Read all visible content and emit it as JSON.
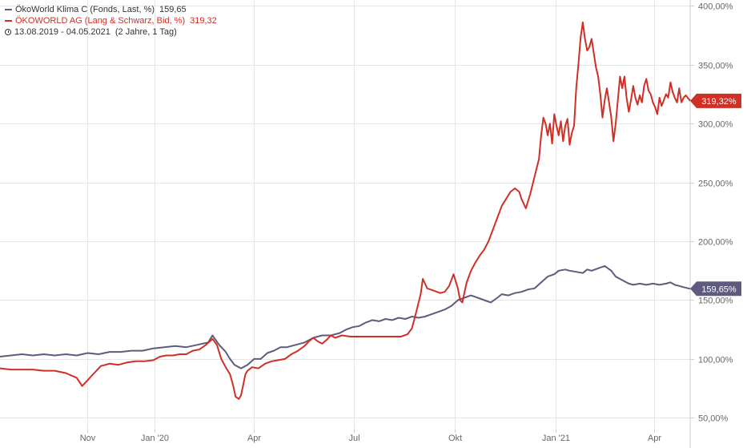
{
  "colors": {
    "fund": "#5e5b7f",
    "stock": "#d02f25",
    "grid": "#e6e6e6",
    "axis_text": "#666666",
    "legend_text": "#333333"
  },
  "legend": {
    "fund_label": "ÖkoWorld Klima C (Fonds, Last, %)",
    "fund_value": "159,65",
    "stock_label": "ÖKOWORLD AG (Lang & Schwarz, Bid, %)",
    "stock_value": "319,32",
    "period": "13.08.2019 - 04.05.2021",
    "period_length": "(2 Jahre, 1 Tag)"
  },
  "chart_data": {
    "type": "line",
    "title": "",
    "xlabel": "",
    "ylabel": "",
    "x_range": [
      "13.08.2019",
      "04.05.2021"
    ],
    "xlim_days": [
      0,
      630
    ],
    "ylim": [
      40,
      405
    ],
    "y_ticks": [
      50,
      100,
      150,
      200,
      250,
      300,
      350,
      400
    ],
    "y_tick_labels": [
      "50,00%",
      "100,00%",
      "150,00%",
      "200,00%",
      "250,00%",
      "300,00%",
      "350,00%",
      "400,00%"
    ],
    "x_ticks": [
      {
        "label": "Nov",
        "day": 80
      },
      {
        "label": "Jan '20",
        "day": 141
      },
      {
        "label": "Apr",
        "day": 232
      },
      {
        "label": "Jul",
        "day": 323
      },
      {
        "label": "Okt",
        "day": 415
      },
      {
        "label": "Jan '21",
        "day": 507
      },
      {
        "label": "Apr",
        "day": 597
      }
    ],
    "grid": true,
    "legend_position": "top-left",
    "series": [
      {
        "name": "ÖkoWorld Klima C (Fonds, Last, %)",
        "last_label": "159,65%",
        "points": [
          [
            0,
            102
          ],
          [
            10,
            103
          ],
          [
            20,
            104
          ],
          [
            30,
            103
          ],
          [
            40,
            104
          ],
          [
            50,
            103
          ],
          [
            60,
            104
          ],
          [
            70,
            103
          ],
          [
            80,
            105
          ],
          [
            90,
            104
          ],
          [
            100,
            106
          ],
          [
            110,
            106
          ],
          [
            120,
            107
          ],
          [
            130,
            107
          ],
          [
            140,
            109
          ],
          [
            150,
            110
          ],
          [
            160,
            111
          ],
          [
            170,
            110
          ],
          [
            180,
            112
          ],
          [
            190,
            114
          ],
          [
            194,
            120
          ],
          [
            200,
            112
          ],
          [
            206,
            106
          ],
          [
            210,
            100
          ],
          [
            214,
            95
          ],
          [
            220,
            92
          ],
          [
            226,
            95
          ],
          [
            232,
            100
          ],
          [
            238,
            100
          ],
          [
            244,
            105
          ],
          [
            250,
            107
          ],
          [
            256,
            110
          ],
          [
            262,
            110
          ],
          [
            270,
            112
          ],
          [
            278,
            114
          ],
          [
            286,
            118
          ],
          [
            294,
            120
          ],
          [
            302,
            120
          ],
          [
            310,
            122
          ],
          [
            316,
            125
          ],
          [
            322,
            127
          ],
          [
            328,
            128
          ],
          [
            334,
            131
          ],
          [
            340,
            133
          ],
          [
            346,
            132
          ],
          [
            352,
            134
          ],
          [
            358,
            133
          ],
          [
            364,
            135
          ],
          [
            370,
            134
          ],
          [
            376,
            136
          ],
          [
            382,
            135
          ],
          [
            388,
            136
          ],
          [
            394,
            138
          ],
          [
            400,
            140
          ],
          [
            406,
            142
          ],
          [
            412,
            145
          ],
          [
            418,
            150
          ],
          [
            424,
            152
          ],
          [
            430,
            154
          ],
          [
            436,
            152
          ],
          [
            442,
            150
          ],
          [
            448,
            148
          ],
          [
            454,
            152
          ],
          [
            458,
            155
          ],
          [
            464,
            154
          ],
          [
            470,
            156
          ],
          [
            476,
            157
          ],
          [
            482,
            159
          ],
          [
            488,
            160
          ],
          [
            494,
            165
          ],
          [
            500,
            170
          ],
          [
            506,
            172
          ],
          [
            510,
            175
          ],
          [
            516,
            176
          ],
          [
            520,
            175
          ],
          [
            526,
            174
          ],
          [
            532,
            173
          ],
          [
            536,
            176
          ],
          [
            540,
            175
          ],
          [
            546,
            177
          ],
          [
            552,
            179
          ],
          [
            558,
            175
          ],
          [
            562,
            170
          ],
          [
            566,
            168
          ],
          [
            570,
            166
          ],
          [
            574,
            164
          ],
          [
            578,
            163
          ],
          [
            584,
            164
          ],
          [
            590,
            163
          ],
          [
            596,
            164
          ],
          [
            602,
            163
          ],
          [
            608,
            164
          ],
          [
            612,
            165
          ],
          [
            616,
            163
          ],
          [
            620,
            162
          ],
          [
            624,
            161
          ],
          [
            630,
            159.65
          ]
        ]
      },
      {
        "name": "ÖKOWORLD AG (Lang & Schwarz, Bid, %)",
        "last_label": "319,32%",
        "points": [
          [
            0,
            92
          ],
          [
            10,
            91
          ],
          [
            20,
            91
          ],
          [
            30,
            91
          ],
          [
            40,
            90
          ],
          [
            50,
            90
          ],
          [
            60,
            88
          ],
          [
            70,
            84
          ],
          [
            75,
            77
          ],
          [
            80,
            82
          ],
          [
            86,
            88
          ],
          [
            92,
            94
          ],
          [
            100,
            96
          ],
          [
            108,
            95
          ],
          [
            116,
            97
          ],
          [
            124,
            98
          ],
          [
            132,
            98
          ],
          [
            140,
            99
          ],
          [
            146,
            102
          ],
          [
            152,
            103
          ],
          [
            158,
            103
          ],
          [
            164,
            104
          ],
          [
            170,
            104
          ],
          [
            176,
            107
          ],
          [
            182,
            108
          ],
          [
            188,
            112
          ],
          [
            194,
            117
          ],
          [
            198,
            112
          ],
          [
            202,
            100
          ],
          [
            206,
            93
          ],
          [
            210,
            87
          ],
          [
            213,
            77
          ],
          [
            215,
            68
          ],
          [
            218,
            66
          ],
          [
            220,
            69
          ],
          [
            222,
            78
          ],
          [
            224,
            87
          ],
          [
            226,
            90
          ],
          [
            230,
            93
          ],
          [
            236,
            92
          ],
          [
            242,
            96
          ],
          [
            248,
            98
          ],
          [
            254,
            99
          ],
          [
            260,
            100
          ],
          [
            266,
            104
          ],
          [
            272,
            107
          ],
          [
            278,
            111
          ],
          [
            282,
            115
          ],
          [
            286,
            118
          ],
          [
            290,
            115
          ],
          [
            294,
            113
          ],
          [
            298,
            116
          ],
          [
            302,
            120
          ],
          [
            306,
            118
          ],
          [
            312,
            120
          ],
          [
            320,
            119
          ],
          [
            330,
            119
          ],
          [
            340,
            119
          ],
          [
            350,
            119
          ],
          [
            360,
            119
          ],
          [
            366,
            119
          ],
          [
            372,
            121
          ],
          [
            376,
            126
          ],
          [
            380,
            140
          ],
          [
            384,
            155
          ],
          [
            386,
            168
          ],
          [
            390,
            160
          ],
          [
            396,
            158
          ],
          [
            402,
            156
          ],
          [
            406,
            157
          ],
          [
            410,
            162
          ],
          [
            414,
            172
          ],
          [
            418,
            160
          ],
          [
            420,
            150
          ],
          [
            422,
            148
          ],
          [
            426,
            165
          ],
          [
            430,
            175
          ],
          [
            434,
            182
          ],
          [
            438,
            188
          ],
          [
            442,
            193
          ],
          [
            446,
            200
          ],
          [
            450,
            210
          ],
          [
            454,
            220
          ],
          [
            458,
            230
          ],
          [
            462,
            236
          ],
          [
            466,
            242
          ],
          [
            470,
            245
          ],
          [
            474,
            242
          ],
          [
            476,
            236
          ],
          [
            478,
            232
          ],
          [
            480,
            228
          ],
          [
            484,
            240
          ],
          [
            488,
            255
          ],
          [
            492,
            270
          ],
          [
            494,
            290
          ],
          [
            496,
            305
          ],
          [
            498,
            300
          ],
          [
            500,
            290
          ],
          [
            502,
            300
          ],
          [
            504,
            283
          ],
          [
            506,
            308
          ],
          [
            508,
            298
          ],
          [
            510,
            290
          ],
          [
            512,
            302
          ],
          [
            514,
            285
          ],
          [
            516,
            298
          ],
          [
            518,
            304
          ],
          [
            520,
            282
          ],
          [
            522,
            292
          ],
          [
            524,
            298
          ],
          [
            526,
            330
          ],
          [
            528,
            350
          ],
          [
            530,
            373
          ],
          [
            532,
            386
          ],
          [
            534,
            372
          ],
          [
            536,
            362
          ],
          [
            538,
            365
          ],
          [
            540,
            372
          ],
          [
            542,
            360
          ],
          [
            544,
            348
          ],
          [
            546,
            340
          ],
          [
            548,
            325
          ],
          [
            550,
            305
          ],
          [
            552,
            320
          ],
          [
            554,
            330
          ],
          [
            556,
            318
          ],
          [
            558,
            305
          ],
          [
            560,
            285
          ],
          [
            562,
            300
          ],
          [
            564,
            320
          ],
          [
            566,
            340
          ],
          [
            568,
            330
          ],
          [
            570,
            340
          ],
          [
            572,
            322
          ],
          [
            574,
            310
          ],
          [
            576,
            320
          ],
          [
            578,
            332
          ],
          [
            580,
            322
          ],
          [
            582,
            316
          ],
          [
            584,
            324
          ],
          [
            586,
            318
          ],
          [
            588,
            332
          ],
          [
            590,
            338
          ],
          [
            592,
            328
          ],
          [
            594,
            325
          ],
          [
            596,
            318
          ],
          [
            598,
            314
          ],
          [
            600,
            308
          ],
          [
            602,
            322
          ],
          [
            604,
            315
          ],
          [
            606,
            320
          ],
          [
            608,
            325
          ],
          [
            610,
            322
          ],
          [
            612,
            335
          ],
          [
            614,
            327
          ],
          [
            616,
            322
          ],
          [
            618,
            318
          ],
          [
            620,
            330
          ],
          [
            622,
            318
          ],
          [
            624,
            322
          ],
          [
            626,
            324
          ],
          [
            630,
            319.32
          ]
        ]
      }
    ]
  }
}
